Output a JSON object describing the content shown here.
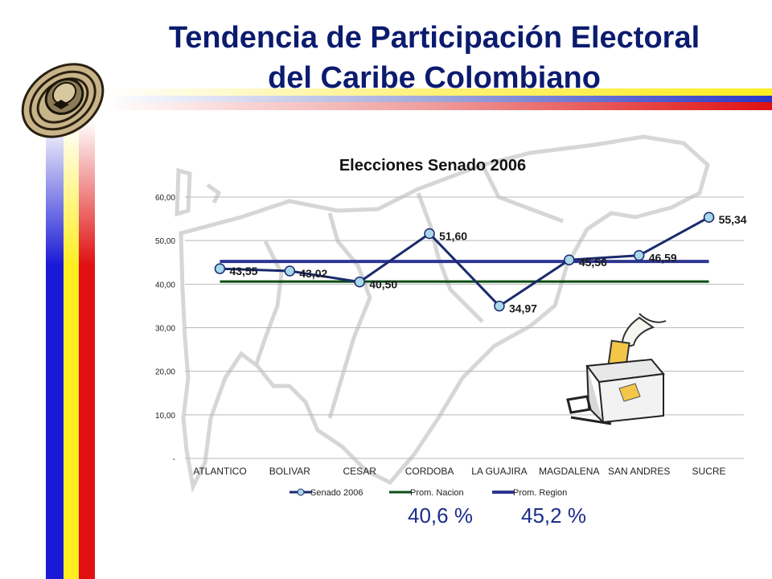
{
  "slide": {
    "title_line1": "Tendencia de Participación Electoral",
    "title_line2": "del Caribe Colombiano",
    "pct_nacion": "40,6 %",
    "pct_region": "45,2 %"
  },
  "colors": {
    "title": "#0b1b6e",
    "senado": "#1a2a6c",
    "marker_fill": "#a8d8ea",
    "nacion": "#0b4d12",
    "region": "#2f3591"
  },
  "icons": {
    "logo": "sombrero-vueltiao-icon",
    "illustration": "ballot-box-icon"
  },
  "chart_data": {
    "type": "line",
    "title": "Elecciones Senado 2006",
    "categories": [
      "ATLANTICO",
      "BOLIVAR",
      "CESAR",
      "CORDOBA",
      "LA GUAJIRA",
      "MAGDALENA",
      "SAN ANDRES",
      "SUCRE"
    ],
    "series": [
      {
        "name": "Senado 2006",
        "values": [
          43.55,
          43.02,
          40.5,
          51.6,
          34.97,
          45.56,
          46.59,
          55.34
        ],
        "labels": [
          "43,55",
          "43,02",
          "40,50",
          "51,60",
          "34,97",
          "45,56",
          "46,59",
          "55,34"
        ]
      },
      {
        "name": "Prom. Nacion",
        "values": [
          40.6,
          40.6,
          40.6,
          40.6,
          40.6,
          40.6,
          40.6,
          40.6
        ]
      },
      {
        "name": "Prom. Region",
        "values": [
          45.2,
          45.2,
          45.2,
          45.2,
          45.2,
          45.2,
          45.2,
          45.2
        ]
      }
    ],
    "ylim": [
      0,
      60
    ],
    "yticks": [
      0,
      10,
      20,
      30,
      40,
      50,
      60
    ],
    "ytick_labels": [
      "-",
      "10,00",
      "20,00",
      "30,00",
      "40,00",
      "50,00",
      "60,00"
    ],
    "grid": true,
    "legend": "bottom"
  }
}
